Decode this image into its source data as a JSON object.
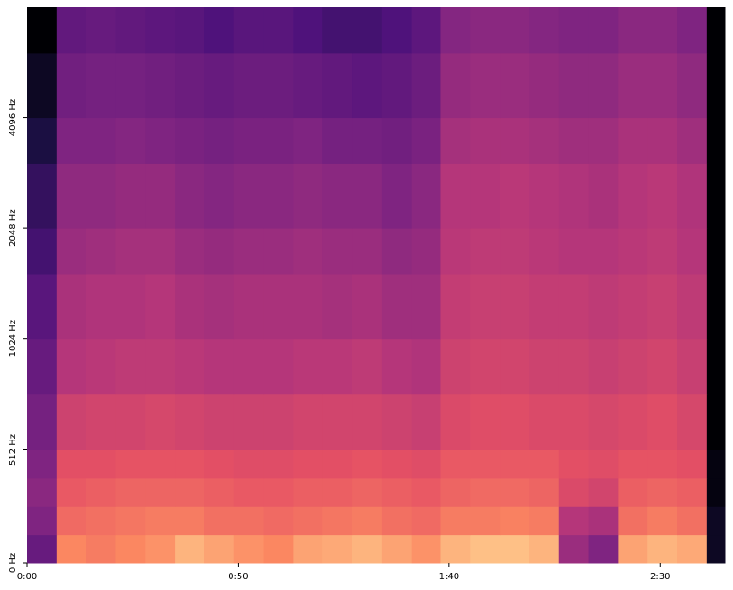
{
  "chart_data": {
    "type": "spectrogram",
    "colormap": "magma",
    "zlim": [
      -80,
      0
    ],
    "yscale": "symlog",
    "ylinthresh": 1000,
    "ylogbase": 2,
    "xlim": [
      0,
      165.3
    ],
    "ylim": [
      0,
      8192
    ],
    "xticks": [
      {
        "value": 0,
        "label": "0:00"
      },
      {
        "value": 50,
        "label": "0:50"
      },
      {
        "value": 100,
        "label": "1:40"
      },
      {
        "value": 150,
        "label": "2:30"
      }
    ],
    "yticks": [
      {
        "value": 0,
        "label": "0 Hz"
      },
      {
        "value": 512,
        "label": "512 Hz"
      },
      {
        "value": 1024,
        "label": "1024 Hz"
      },
      {
        "value": 2048,
        "label": "2048 Hz"
      },
      {
        "value": 4096,
        "label": "4096 Hz"
      }
    ],
    "xbins": [
      0,
      7,
      14,
      21,
      28,
      35,
      42,
      49,
      56,
      63,
      70,
      77,
      84,
      91,
      98,
      105,
      112,
      119,
      126,
      133,
      140,
      147,
      154,
      161,
      165.3
    ],
    "ybins": [
      0,
      128,
      256,
      384,
      512,
      768,
      1024,
      1536,
      2048,
      3072,
      4096,
      6144,
      8192
    ],
    "values": [
      [
        -55,
        -20,
        -22,
        -20,
        -18,
        -12,
        -15,
        -18,
        -20,
        -15,
        -14,
        -12,
        -15,
        -18,
        -12,
        -10,
        -10,
        -12,
        -45,
        -50,
        -15,
        -12,
        -14,
        -75
      ],
      [
        -50,
        -25,
        -24,
        -23,
        -22,
        -22,
        -24,
        -24,
        -25,
        -24,
        -23,
        -22,
        -24,
        -25,
        -22,
        -22,
        -21,
        -22,
        -40,
        -42,
        -24,
        -22,
        -24,
        -75
      ],
      [
        -48,
        -28,
        -27,
        -26,
        -26,
        -26,
        -27,
        -28,
        -28,
        -27,
        -27,
        -26,
        -27,
        -28,
        -26,
        -25,
        -25,
        -26,
        -32,
        -34,
        -27,
        -26,
        -27,
        -78
      ],
      [
        -50,
        -30,
        -30,
        -29,
        -29,
        -29,
        -30,
        -31,
        -31,
        -30,
        -30,
        -29,
        -30,
        -31,
        -28,
        -28,
        -28,
        -28,
        -30,
        -31,
        -29,
        -29,
        -30,
        -78
      ],
      [
        -52,
        -35,
        -34,
        -34,
        -33,
        -34,
        -35,
        -35,
        -35,
        -34,
        -34,
        -34,
        -35,
        -36,
        -32,
        -31,
        -31,
        -32,
        -32,
        -33,
        -32,
        -31,
        -33,
        -80
      ],
      [
        -55,
        -40,
        -39,
        -38,
        -38,
        -39,
        -40,
        -40,
        -40,
        -39,
        -39,
        -38,
        -40,
        -41,
        -35,
        -34,
        -34,
        -35,
        -35,
        -36,
        -35,
        -34,
        -36,
        -80
      ],
      [
        -58,
        -42,
        -41,
        -41,
        -40,
        -42,
        -43,
        -42,
        -42,
        -42,
        -43,
        -42,
        -44,
        -44,
        -37,
        -36,
        -36,
        -37,
        -37,
        -38,
        -37,
        -36,
        -38,
        -80
      ],
      [
        -62,
        -45,
        -44,
        -43,
        -43,
        -45,
        -46,
        -45,
        -45,
        -44,
        -45,
        -45,
        -47,
        -46,
        -39,
        -38,
        -38,
        -39,
        -40,
        -40,
        -39,
        -38,
        -40,
        -80
      ],
      [
        -65,
        -47,
        -47,
        -46,
        -46,
        -48,
        -49,
        -48,
        -48,
        -47,
        -48,
        -48,
        -50,
        -48,
        -40,
        -40,
        -39,
        -40,
        -41,
        -42,
        -40,
        -39,
        -41,
        -80
      ],
      [
        -70,
        -50,
        -50,
        -49,
        -50,
        -51,
        -52,
        -51,
        -51,
        -50,
        -52,
        -52,
        -53,
        -51,
        -43,
        -42,
        -42,
        -43,
        -44,
        -44,
        -42,
        -42,
        -44,
        -80
      ],
      [
        -75,
        -53,
        -52,
        -52,
        -53,
        -54,
        -55,
        -54,
        -54,
        -55,
        -56,
        -57,
        -56,
        -54,
        -46,
        -45,
        -45,
        -46,
        -47,
        -47,
        -45,
        -45,
        -47,
        -80
      ],
      [
        -80,
        -56,
        -55,
        -56,
        -57,
        -58,
        -60,
        -58,
        -58,
        -60,
        -62,
        -62,
        -60,
        -57,
        -49,
        -48,
        -48,
        -49,
        -50,
        -50,
        -48,
        -48,
        -50,
        -80
      ]
    ]
  }
}
